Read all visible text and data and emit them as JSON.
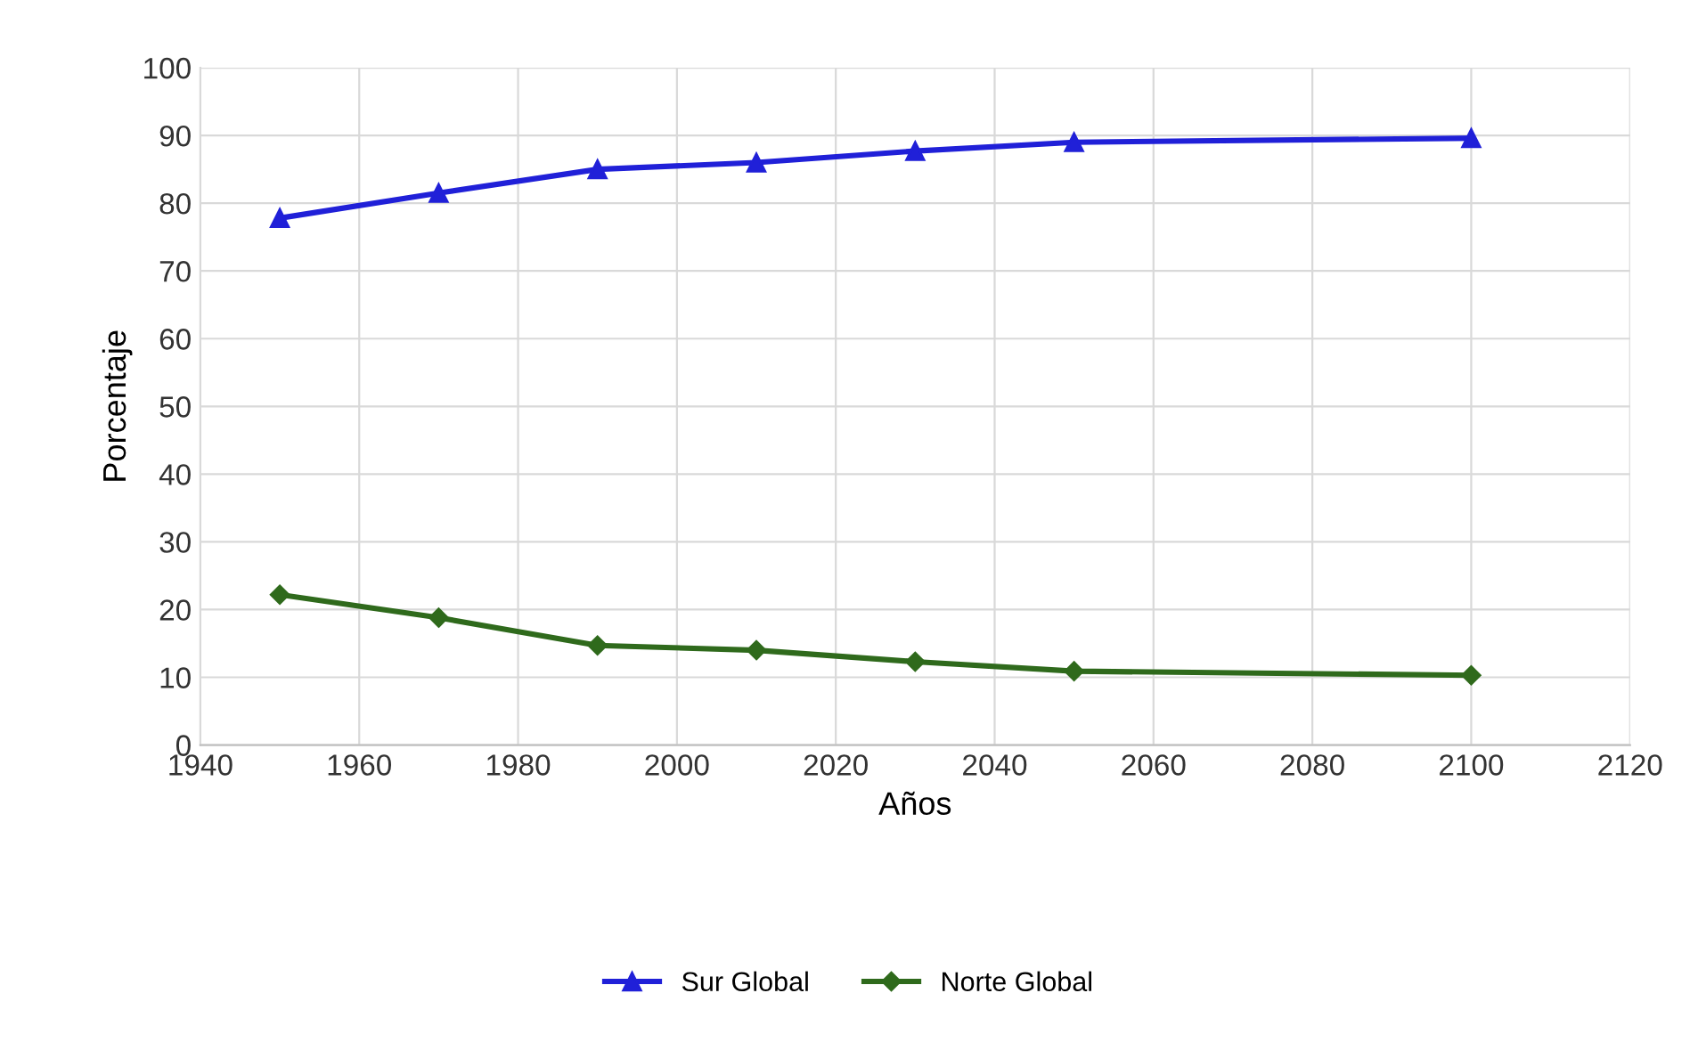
{
  "chart_data": {
    "type": "line",
    "xlabel": "Años",
    "ylabel": "Porcentaje",
    "x": [
      1950,
      1970,
      1990,
      2010,
      2030,
      2050,
      2100
    ],
    "series": [
      {
        "name": "Sur Global",
        "color": "#2020d8",
        "marker": "triangle",
        "values": [
          77.8,
          81.5,
          85.0,
          86.0,
          87.7,
          89.0,
          89.6
        ]
      },
      {
        "name": "Norte Global",
        "color": "#2f6a1c",
        "marker": "diamond",
        "values": [
          22.2,
          18.8,
          14.7,
          14.0,
          12.3,
          10.9,
          10.3
        ]
      }
    ],
    "xlim": [
      1940,
      2120
    ],
    "xticks": [
      1940,
      1960,
      1980,
      2000,
      2020,
      2040,
      2060,
      2080,
      2100,
      2120
    ],
    "ylim": [
      0,
      100
    ],
    "yticks": [
      0,
      10,
      20,
      30,
      40,
      50,
      60,
      70,
      80,
      90,
      100
    ],
    "grid": true,
    "legend": "bottom",
    "line_style": "solid"
  }
}
